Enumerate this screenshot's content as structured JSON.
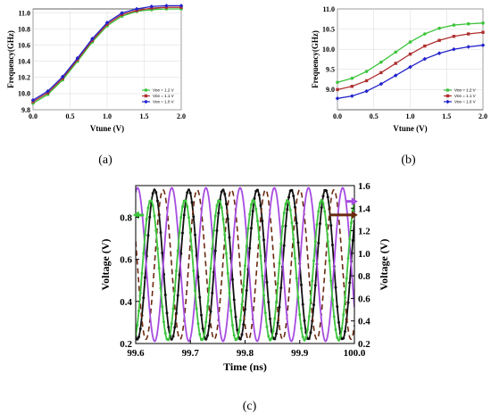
{
  "chart_data": [
    {
      "type": "line",
      "panel_label": "(a)",
      "xlabel": "Vtune (V)",
      "ylabel": "Frequency(GHz)",
      "xlim": [
        0.0,
        2.0
      ],
      "ylim": [
        9.8,
        11.05
      ],
      "xticks": [
        "0.0",
        "0.5",
        "1.0",
        "1.5",
        "2.0"
      ],
      "yticks": [
        "9.8",
        "10.0",
        "10.2",
        "10.4",
        "10.6",
        "10.8",
        "11.0"
      ],
      "grid": true,
      "legend_position": "bottom-right",
      "x": [
        0.0,
        0.2,
        0.4,
        0.6,
        0.8,
        1.0,
        1.2,
        1.4,
        1.6,
        1.8,
        2.0
      ],
      "series": [
        {
          "name": "Vᴅᴅ = 1.2 V",
          "color": "#3cc43c",
          "marker": "circle",
          "values": [
            9.88,
            9.99,
            10.17,
            10.4,
            10.64,
            10.84,
            10.96,
            11.02,
            11.04,
            11.05,
            11.05
          ]
        },
        {
          "name": "Vᴅᴅ = 1.1 V",
          "color": "#b03030",
          "marker": "square",
          "values": [
            9.9,
            10.01,
            10.19,
            10.42,
            10.66,
            10.86,
            10.98,
            11.03,
            11.06,
            11.07,
            11.07
          ]
        },
        {
          "name": "Vᴅᴅ = 1.0 V",
          "color": "#2222cc",
          "marker": "diamond",
          "values": [
            9.92,
            10.03,
            10.21,
            10.44,
            10.68,
            10.88,
            11.0,
            11.05,
            11.08,
            11.09,
            11.09
          ]
        }
      ]
    },
    {
      "type": "line",
      "panel_label": "(b)",
      "xlabel": "Vtune (V)",
      "ylabel": "Frequency(GHz)",
      "xlim": [
        0.0,
        2.0
      ],
      "ylim": [
        8.5,
        11.0
      ],
      "xticks": [
        "0.0",
        "0.5",
        "1.0",
        "1.5",
        "2.0"
      ],
      "yticks": [
        "9.0",
        "9.5",
        "10.0",
        "10.5",
        "11.0"
      ],
      "grid": true,
      "legend_position": "bottom-right",
      "x": [
        0.0,
        0.2,
        0.4,
        0.6,
        0.8,
        1.0,
        1.2,
        1.4,
        1.6,
        1.8,
        2.0
      ],
      "series": [
        {
          "name": "Vᴅᴅ = 1.2 V",
          "color": "#3cc43c",
          "marker": "circle",
          "values": [
            9.18,
            9.28,
            9.45,
            9.68,
            9.93,
            10.18,
            10.38,
            10.52,
            10.6,
            10.63,
            10.65
          ]
        },
        {
          "name": "Vᴅᴅ = 1.1 V",
          "color": "#b03030",
          "marker": "square",
          "values": [
            9.0,
            9.08,
            9.22,
            9.42,
            9.65,
            9.88,
            10.08,
            10.22,
            10.32,
            10.38,
            10.42
          ]
        },
        {
          "name": "Vᴅᴅ = 1.0 V",
          "color": "#2222cc",
          "marker": "diamond",
          "values": [
            8.78,
            8.84,
            8.96,
            9.14,
            9.35,
            9.56,
            9.76,
            9.9,
            10.0,
            10.06,
            10.1
          ]
        }
      ]
    },
    {
      "type": "line",
      "panel_label": "(c)",
      "xlabel": "Time (ns)",
      "ylabel": "Voltage (V)",
      "y2label": "Voltage (V)",
      "xlim": [
        99.6,
        100.0
      ],
      "ylim": [
        0.2,
        0.95
      ],
      "y2lim": [
        0.2,
        1.6
      ],
      "xticks": [
        "99.6",
        "99.7",
        "99.8",
        "99.9",
        "100.0"
      ],
      "yticks": [
        "0.2",
        "0.4",
        "0.6",
        "0.8"
      ],
      "y2ticks": [
        "0.2",
        "0.4",
        "0.6",
        "0.8",
        "1.0",
        "1.2",
        "1.4",
        "1.6"
      ],
      "grid": false,
      "series": [
        {
          "color": "#111111",
          "style": "solid-markers",
          "axis": "left",
          "offset": 0.575,
          "amplitude": 0.355,
          "period": 0.0625,
          "phase": 99.6345
        },
        {
          "color": "#6b2a10",
          "style": "dashed",
          "axis": "left",
          "offset": 0.575,
          "amplitude": 0.355,
          "period": 0.0625,
          "phase": 99.65
        },
        {
          "color": "#a64ce0",
          "style": "solid",
          "axis": "right",
          "offset": 0.9,
          "amplitude": 0.68,
          "period": 0.0625,
          "phase": 99.666
        },
        {
          "color": "#3cc43c",
          "style": "solid-markers",
          "axis": "right",
          "offset": 0.85,
          "amplitude": 0.62,
          "period": 0.0625,
          "phase": 99.69
        }
      ],
      "arrows": [
        {
          "color": "#3cc43c",
          "axis": "left",
          "y": 0.81,
          "x_from": 99.615,
          "x_to": 99.603,
          "direction": "left"
        },
        {
          "color": "#a64ce0",
          "axis": "right",
          "y": 1.46,
          "x_from": 99.985,
          "x_to": 99.998,
          "direction": "right"
        },
        {
          "color": "#6b2a10",
          "axis": "right",
          "y": 1.34,
          "x_from": 99.955,
          "x_to": 99.998,
          "direction": "right"
        }
      ]
    }
  ]
}
